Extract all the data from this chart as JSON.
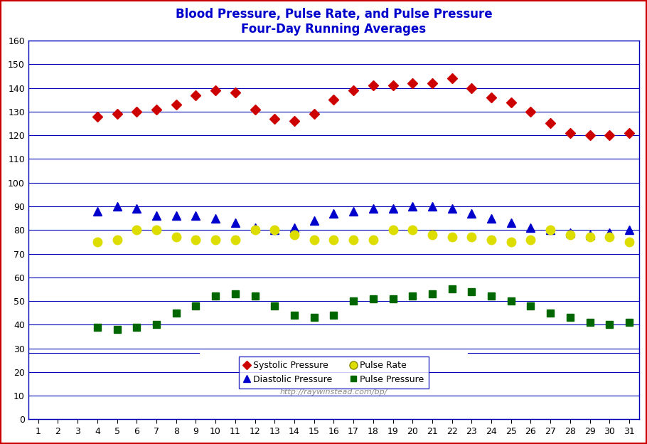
{
  "title_line1": "Blood Pressure, Pulse Rate, and Pulse Pressure",
  "title_line2": "Four-Day Running Averages",
  "title_color": "#0000CC",
  "title_fontsize": 12,
  "background_color": "#FFFFFF",
  "plot_bg_color": "#FFFFFF",
  "grid_color": "#0000BB",
  "outer_border_color": "#CC0000",
  "x_ticks": [
    1,
    2,
    3,
    4,
    5,
    6,
    7,
    8,
    9,
    10,
    11,
    12,
    13,
    14,
    15,
    16,
    17,
    18,
    19,
    20,
    21,
    22,
    23,
    24,
    25,
    26,
    27,
    28,
    29,
    30,
    31
  ],
  "ylim": [
    0,
    160
  ],
  "yticks": [
    0,
    10,
    20,
    30,
    40,
    50,
    60,
    70,
    80,
    90,
    100,
    110,
    120,
    130,
    140,
    150,
    160
  ],
  "url_text": "http://raywinstead.com/bp/",
  "systolic": {
    "x": [
      4,
      5,
      6,
      7,
      8,
      9,
      10,
      11,
      12,
      13,
      14,
      15,
      16,
      17,
      18,
      19,
      20,
      21,
      22,
      23,
      24,
      25,
      26,
      27,
      28,
      29,
      30,
      31
    ],
    "y": [
      128,
      129,
      130,
      131,
      133,
      137,
      139,
      138,
      131,
      127,
      126,
      129,
      135,
      139,
      141,
      141,
      142,
      142,
      144,
      140,
      136,
      134,
      130,
      125,
      121,
      120,
      120,
      121
    ],
    "color": "#CC0000",
    "marker": "D",
    "markersize": 7,
    "label": "Systolic Pressure"
  },
  "diastolic": {
    "x": [
      4,
      5,
      6,
      7,
      8,
      9,
      10,
      11,
      12,
      13,
      14,
      15,
      16,
      17,
      18,
      19,
      20,
      21,
      22,
      23,
      24,
      25,
      26,
      27,
      28,
      29,
      30,
      31
    ],
    "y": [
      88,
      90,
      89,
      86,
      86,
      86,
      85,
      83,
      81,
      80,
      81,
      84,
      87,
      88,
      89,
      89,
      90,
      90,
      89,
      87,
      85,
      83,
      81,
      80,
      79,
      78,
      79,
      80
    ],
    "color": "#0000CC",
    "marker": "^",
    "markersize": 8,
    "label": "Diastolic Pressure"
  },
  "pulse_rate": {
    "x": [
      4,
      5,
      6,
      7,
      8,
      9,
      10,
      11,
      12,
      13,
      14,
      15,
      16,
      17,
      18,
      19,
      20,
      21,
      22,
      23,
      24,
      25,
      26,
      27,
      28,
      29,
      30,
      31
    ],
    "y": [
      75,
      76,
      80,
      80,
      77,
      76,
      76,
      76,
      80,
      80,
      78,
      76,
      76,
      76,
      76,
      80,
      80,
      78,
      77,
      77,
      76,
      75,
      76,
      80,
      78,
      77,
      77,
      75
    ],
    "color": "#DDDD00",
    "marker": "o",
    "markersize": 9,
    "label": "Pulse Rate"
  },
  "pulse_pressure": {
    "x": [
      4,
      5,
      6,
      7,
      8,
      9,
      10,
      11,
      12,
      13,
      14,
      15,
      16,
      17,
      18,
      19,
      20,
      21,
      22,
      23,
      24,
      25,
      26,
      27,
      28,
      29,
      30,
      31
    ],
    "y": [
      39,
      38,
      39,
      40,
      45,
      48,
      52,
      53,
      52,
      48,
      44,
      43,
      44,
      50,
      51,
      51,
      52,
      53,
      55,
      54,
      52,
      50,
      48,
      45,
      43,
      41,
      40,
      41
    ],
    "color": "#006600",
    "marker": "s",
    "markersize": 7,
    "label": "Pulse Pressure"
  }
}
